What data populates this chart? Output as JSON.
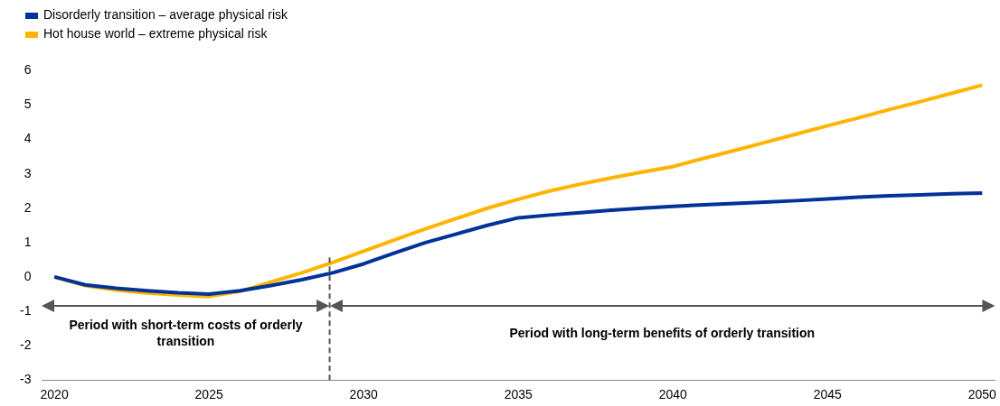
{
  "chart_data": {
    "type": "line",
    "x": [
      2020,
      2021,
      2022,
      2023,
      2024,
      2025,
      2026,
      2027,
      2028,
      2029,
      2030,
      2031,
      2032,
      2033,
      2034,
      2035,
      2036,
      2037,
      2038,
      2039,
      2040,
      2041,
      2042,
      2043,
      2044,
      2045,
      2046,
      2047,
      2048,
      2049,
      2050
    ],
    "series": [
      {
        "name": "Disorderly transition –  average physical risk",
        "color": "#003299",
        "values": [
          0,
          -0.23,
          -0.33,
          -0.4,
          -0.46,
          -0.5,
          -0.4,
          -0.25,
          -0.08,
          0.12,
          0.38,
          0.7,
          1.0,
          1.25,
          1.5,
          1.72,
          1.8,
          1.87,
          1.94,
          2.0,
          2.05,
          2.1,
          2.14,
          2.18,
          2.22,
          2.27,
          2.32,
          2.36,
          2.39,
          2.42,
          2.44
        ]
      },
      {
        "name": "Hot house world – extreme physical risk",
        "color": "#ffb400",
        "values": [
          0,
          -0.25,
          -0.38,
          -0.47,
          -0.53,
          -0.57,
          -0.42,
          -0.15,
          0.12,
          0.42,
          0.75,
          1.08,
          1.4,
          1.7,
          2.0,
          2.26,
          2.5,
          2.7,
          2.88,
          3.05,
          3.21,
          3.45,
          3.68,
          3.92,
          4.16,
          4.4,
          4.63,
          4.87,
          5.1,
          5.34,
          5.58
        ]
      }
    ],
    "xlim": [
      2019.6,
      2050.4
    ],
    "xticks": [
      2020,
      2025,
      2030,
      2035,
      2040,
      2045,
      2050
    ],
    "ylim": [
      -3,
      6
    ],
    "yticks": [
      -3,
      -2,
      -1,
      0,
      1,
      2,
      3,
      4,
      5,
      6
    ],
    "grid": false,
    "legend": "top left",
    "marker": "none",
    "line_style": "solid",
    "ref_lines": [
      {
        "axis": "x",
        "value": 2028.9,
        "line_style": "dashed",
        "color": "#555555"
      }
    ],
    "annotations": [
      "Period with short-term costs of orderly transition",
      "Period with long-term benefits of orderly transition"
    ]
  }
}
